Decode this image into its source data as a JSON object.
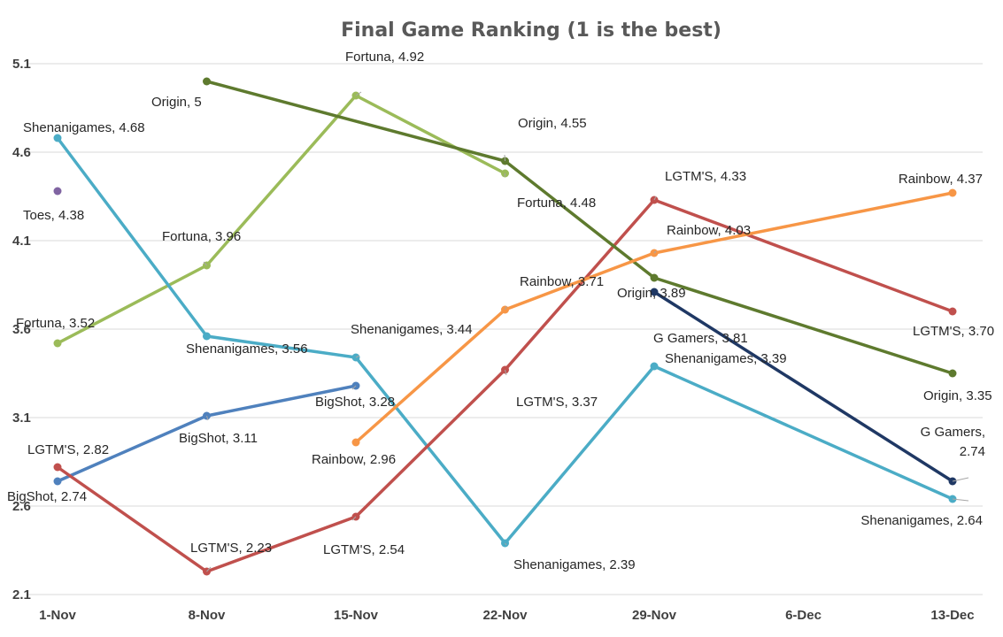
{
  "chart_data": {
    "type": "line",
    "title": "Final Game Ranking (1 is the best)",
    "xlabel": "",
    "ylabel": "",
    "categories": [
      "1-Nov",
      "8-Nov",
      "15-Nov",
      "22-Nov",
      "29-Nov",
      "6-Dec",
      "13-Dec"
    ],
    "yticks": [
      "2.1",
      "2.6",
      "3.1",
      "3.6",
      "4.1",
      "4.6",
      "5.1"
    ],
    "ylim": [
      2.1,
      5.1
    ],
    "grid": true,
    "legend": "none",
    "series": [
      {
        "name": "Fortuna",
        "color": "#9bbb59",
        "points": [
          {
            "x": "1-Nov",
            "y": 3.52,
            "label": "Fortuna, 3.52"
          },
          {
            "x": "8-Nov",
            "y": 3.96,
            "label": "Fortuna, 3.96"
          },
          {
            "x": "15-Nov",
            "y": 4.92,
            "label": "Fortuna, 4.92"
          },
          {
            "x": "22-Nov",
            "y": 4.48,
            "label": "Fortuna, 4.48"
          }
        ]
      },
      {
        "name": "Shenanigames",
        "color": "#4bacc6",
        "points": [
          {
            "x": "1-Nov",
            "y": 4.68,
            "label": "Shenanigames, 4.68"
          },
          {
            "x": "8-Nov",
            "y": 3.56,
            "label": "Shenanigames, 3.56"
          },
          {
            "x": "15-Nov",
            "y": 3.44,
            "label": "Shenanigames, 3.44"
          },
          {
            "x": "22-Nov",
            "y": 2.39,
            "label": "Shenanigames, 2.39"
          },
          {
            "x": "29-Nov",
            "y": 3.39,
            "label": "Shenanigames, 3.39"
          },
          {
            "x": "13-Dec",
            "y": 2.64,
            "label": "Shenanigames, 2.64"
          }
        ]
      },
      {
        "name": "BigShot",
        "color": "#4f81bd",
        "points": [
          {
            "x": "1-Nov",
            "y": 2.74,
            "label": "BigShot, 2.74"
          },
          {
            "x": "8-Nov",
            "y": 3.11,
            "label": "BigShot, 3.11"
          },
          {
            "x": "15-Nov",
            "y": 3.28,
            "label": "BigShot, 3.28"
          }
        ]
      },
      {
        "name": "LGTM'S",
        "color": "#c0504d",
        "points": [
          {
            "x": "1-Nov",
            "y": 2.82,
            "label": "LGTM'S, 2.82"
          },
          {
            "x": "8-Nov",
            "y": 2.23,
            "label": "LGTM'S, 2.23"
          },
          {
            "x": "15-Nov",
            "y": 2.54,
            "label": "LGTM'S, 2.54"
          },
          {
            "x": "22-Nov",
            "y": 3.37,
            "label": "LGTM'S, 3.37"
          },
          {
            "x": "29-Nov",
            "y": 4.33,
            "label": "LGTM'S, 4.33"
          },
          {
            "x": "13-Dec",
            "y": 3.7,
            "label": "LGTM'S, 3.70"
          }
        ]
      },
      {
        "name": "Origin",
        "color": "#5e7a2e",
        "points": [
          {
            "x": "8-Nov",
            "y": 5.0,
            "label": "Origin, 5"
          },
          {
            "x": "22-Nov",
            "y": 4.55,
            "label": "Origin, 4.55"
          },
          {
            "x": "29-Nov",
            "y": 3.89,
            "label": "Origin, 3.89"
          },
          {
            "x": "13-Dec",
            "y": 3.35,
            "label": "Origin, 3.35"
          }
        ]
      },
      {
        "name": "Toes",
        "color": "#8064a2",
        "points": [
          {
            "x": "1-Nov",
            "y": 4.38,
            "label": "Toes, 4.38"
          }
        ]
      },
      {
        "name": "Rainbow",
        "color": "#f79646",
        "points": [
          {
            "x": "15-Nov",
            "y": 2.96,
            "label": "Rainbow, 2.96"
          },
          {
            "x": "22-Nov",
            "y": 3.71,
            "label": "Rainbow, 3.71"
          },
          {
            "x": "29-Nov",
            "y": 4.03,
            "label": "Rainbow, 4.03"
          },
          {
            "x": "13-Dec",
            "y": 4.37,
            "label": "Rainbow, 4.37"
          }
        ]
      },
      {
        "name": "G Gamers",
        "color": "#1f3864",
        "points": [
          {
            "x": "29-Nov",
            "y": 3.81,
            "label": "G Gamers, 3.81"
          },
          {
            "x": "13-Dec",
            "y": 2.74,
            "label": [
              "G Gamers,",
              "2.74"
            ]
          }
        ]
      }
    ]
  }
}
